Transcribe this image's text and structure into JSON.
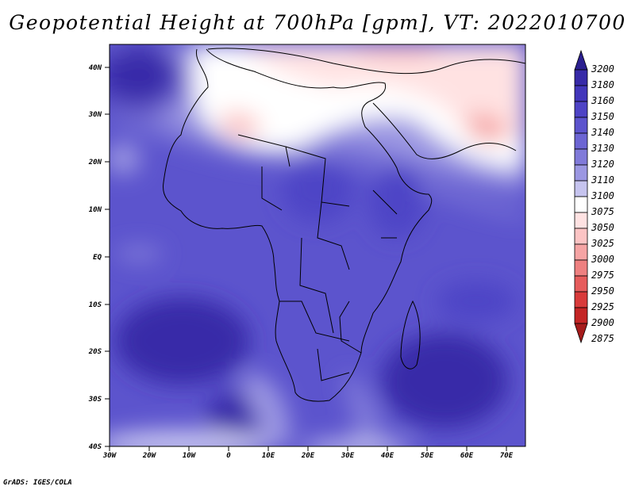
{
  "title": "Geopotential Height at 700hPa [gpm], VT: 2022010700",
  "credit": "GrADS: IGES/COLA",
  "lat_labels": [
    "40N",
    "30N",
    "20N",
    "10N",
    "EQ",
    "10S",
    "20S",
    "30S",
    "40S"
  ],
  "lon_labels": [
    "30W",
    "20W",
    "10W",
    "0",
    "10E",
    "20E",
    "30E",
    "40E",
    "50E",
    "60E",
    "70E"
  ],
  "colorbar": {
    "levels": [
      "3200",
      "3180",
      "3160",
      "3150",
      "3140",
      "3130",
      "3120",
      "3110",
      "3100",
      "3075",
      "3050",
      "3025",
      "3000",
      "2975",
      "2950",
      "2925",
      "2900",
      "2875"
    ],
    "colors": [
      "#2b1f8f",
      "#372aa8",
      "#4236bb",
      "#4e44c6",
      "#5c54cd",
      "#6c65d3",
      "#807ad9",
      "#9b97e2",
      "#c6c4ef",
      "#ffffff",
      "#ffe2e2",
      "#fcc4c4",
      "#f5a4a4",
      "#ee8080",
      "#e65c5c",
      "#d93b3b",
      "#c42525",
      "#a51b1b"
    ]
  }
}
